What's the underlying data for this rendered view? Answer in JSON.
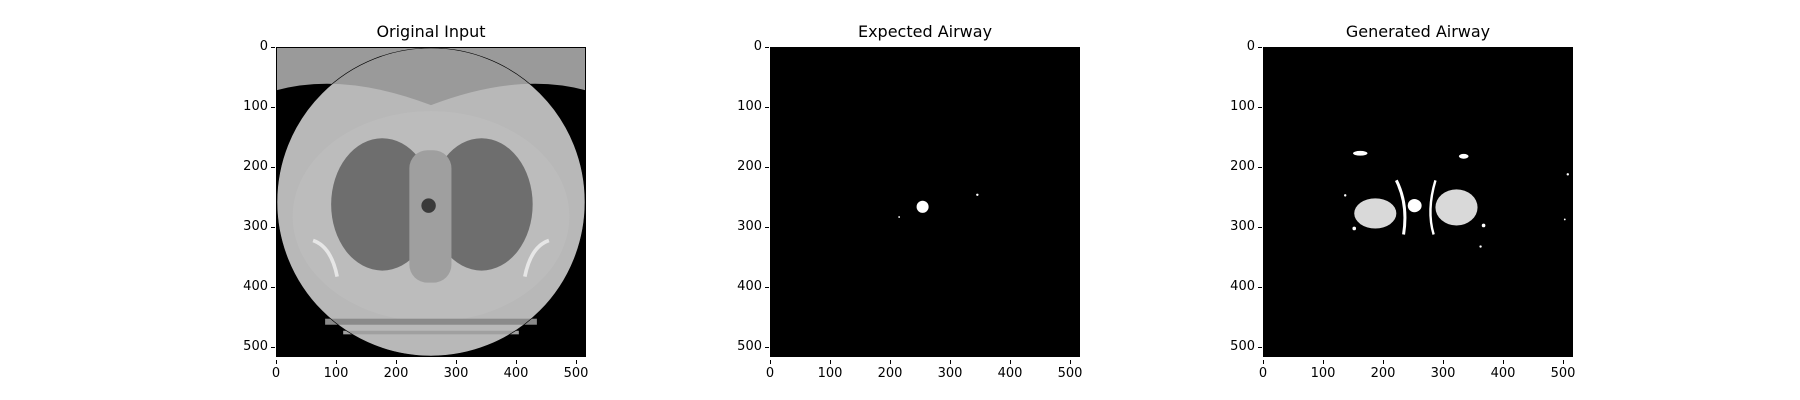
{
  "panels": [
    {
      "title": "Original Input"
    },
    {
      "title": "Expected Airway"
    },
    {
      "title": "Generated Airway"
    }
  ],
  "axes": {
    "y_ticks": [
      "0",
      "100",
      "200",
      "300",
      "400",
      "500"
    ],
    "x_ticks": [
      "0",
      "100",
      "200",
      "300",
      "400",
      "500"
    ]
  }
}
